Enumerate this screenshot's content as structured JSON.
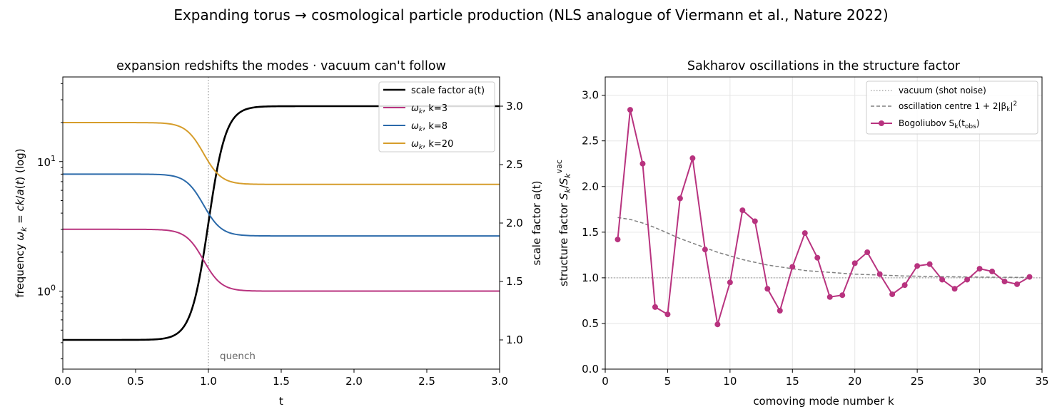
{
  "figure": {
    "suptitle": "Expanding torus → cosmological particle production (NLS analogue of Viermann et al., Nature 2022)"
  },
  "chart_data": [
    {
      "type": "line",
      "title": "expansion redshifts the modes  ·  vacuum can't follow",
      "xlabel": "t",
      "ylabel": "frequency   ωₖ = ck/a(t)   (log)",
      "ylabel2": "scale factor  a(t)",
      "xlim": [
        0,
        3
      ],
      "ylim": [
        0.25,
        45
      ],
      "yscale": "log",
      "ylim2": [
        0.75,
        3.25
      ],
      "xticks": [
        "0.0",
        "0.5",
        "1.0",
        "1.5",
        "2.0",
        "2.5",
        "3.0"
      ],
      "yticks_log": [
        {
          "value": 1,
          "base": "10",
          "exp": "0"
        },
        {
          "value": 10,
          "base": "10",
          "exp": "1"
        }
      ],
      "yticks2": [
        "1.0",
        "1.5",
        "2.0",
        "2.5",
        "3.0"
      ],
      "legend_position": "top-right",
      "annotation": {
        "text": "quench",
        "x": 1.0
      },
      "vline": {
        "x": 1.0
      },
      "scale_factor": {
        "a_start": 1.0,
        "a_end": 3.0,
        "t_mid": 1.0,
        "tau": 0.06
      },
      "series": [
        {
          "name": "scale factor a(t)",
          "legend_sym": "",
          "legend_k": "",
          "color": "#000000",
          "width": 2.6,
          "axis": "right",
          "kind": "a"
        },
        {
          "name": "ωₖ, k=3",
          "legend_sym": "ω",
          "legend_k": ", k=3",
          "color": "#b8337f",
          "width": 2.0,
          "axis": "left",
          "kind": "omega",
          "k": 3
        },
        {
          "name": "ωₖ, k=8",
          "legend_sym": "ω",
          "legend_k": ", k=8",
          "color": "#2b6aaa",
          "width": 2.0,
          "axis": "left",
          "kind": "omega",
          "k": 8
        },
        {
          "name": "ωₖ, k=20",
          "legend_sym": "ω",
          "legend_k": ", k=20",
          "color": "#d69d2b",
          "width": 2.0,
          "axis": "left",
          "kind": "omega",
          "k": 20
        }
      ]
    },
    {
      "type": "line",
      "title": "Sakharov oscillations in the structure factor",
      "xlabel": "comoving mode number  k",
      "ylabel": "structure factor  Sₖ/Sₖᵛᵃᶜ",
      "xlim": [
        0,
        35
      ],
      "ylim": [
        0,
        3.2
      ],
      "grid": true,
      "xticks": [
        0,
        5,
        10,
        15,
        20,
        25,
        30,
        35
      ],
      "yticks": [
        "0.0",
        "0.5",
        "1.0",
        "1.5",
        "2.0",
        "2.5",
        "3.0"
      ],
      "legend_position": "top-right",
      "series": [
        {
          "name": "vacuum (shot noise)",
          "legend": "vacuum (shot noise)",
          "color": "#999999",
          "style": "dotted",
          "x": [
            0,
            35
          ],
          "y": [
            1.0,
            1.0
          ]
        },
        {
          "name": "oscillation centre  1 + 2|βₖ|²",
          "legend": "oscillation centre  1 + 2|β",
          "color": "#808080",
          "style": "dashed",
          "x": [
            1,
            2,
            3,
            4,
            5,
            6,
            7,
            8,
            9,
            10,
            11,
            12,
            13,
            14,
            15,
            16,
            17,
            18,
            19,
            20,
            21,
            22,
            23,
            24,
            25,
            26,
            27,
            28,
            29,
            30,
            31,
            32,
            33,
            34
          ],
          "y": [
            1.66,
            1.64,
            1.6,
            1.55,
            1.49,
            1.43,
            1.38,
            1.33,
            1.28,
            1.24,
            1.2,
            1.17,
            1.14,
            1.12,
            1.1,
            1.08,
            1.07,
            1.06,
            1.05,
            1.04,
            1.035,
            1.03,
            1.025,
            1.02,
            1.018,
            1.015,
            1.013,
            1.011,
            1.01,
            1.008,
            1.007,
            1.006,
            1.005,
            1.005
          ]
        },
        {
          "name": "Bogoliubov  Sₖ(t_obs)",
          "legend": "Bogoliubov  S",
          "color": "#b8337f",
          "style": "solid-markers",
          "x": [
            1,
            2,
            3,
            4,
            5,
            6,
            7,
            8,
            9,
            10,
            11,
            12,
            13,
            14,
            15,
            16,
            17,
            18,
            19,
            20,
            21,
            22,
            23,
            24,
            25,
            26,
            27,
            28,
            29,
            30,
            31,
            32,
            33,
            34
          ],
          "y": [
            1.42,
            2.84,
            2.25,
            0.68,
            0.6,
            1.87,
            2.31,
            1.31,
            0.49,
            0.95,
            1.74,
            1.62,
            0.88,
            0.64,
            1.12,
            1.49,
            1.22,
            0.79,
            0.81,
            1.16,
            1.28,
            1.04,
            0.82,
            0.92,
            1.13,
            1.15,
            0.98,
            0.88,
            0.98,
            1.1,
            1.07,
            0.96,
            0.93,
            1.01
          ]
        }
      ]
    }
  ]
}
